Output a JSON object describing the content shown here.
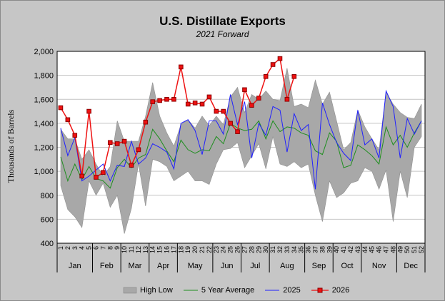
{
  "title": "U.S. Distillate Exports",
  "subtitle": "2021 Forward",
  "chart_data": {
    "type": "line",
    "ylabel": "Thousands of Barrels",
    "ylim": [
      400,
      2000
    ],
    "yticks": [
      400,
      600,
      800,
      1000,
      1200,
      1400,
      1600,
      1800,
      2000
    ],
    "ytick_labels": [
      "400",
      "600",
      "800",
      "1,000",
      "1,200",
      "1,400",
      "1,600",
      "1,800",
      "2,000"
    ],
    "x": [
      1,
      2,
      3,
      4,
      5,
      6,
      7,
      8,
      9,
      10,
      11,
      12,
      13,
      14,
      15,
      16,
      17,
      18,
      19,
      20,
      21,
      22,
      23,
      24,
      25,
      26,
      27,
      28,
      29,
      30,
      31,
      32,
      33,
      34,
      35,
      36,
      37,
      38,
      39,
      40,
      41,
      42,
      43,
      44,
      45,
      46,
      47,
      48,
      49,
      50,
      51,
      52
    ],
    "x_tick_labels": [
      "1",
      "2",
      "3",
      "4",
      "5",
      "6",
      "7",
      "8",
      "9",
      "10",
      "11",
      "12",
      "13",
      "14",
      "15",
      "16",
      "17",
      "18",
      "19",
      "20",
      "21",
      "22",
      "23",
      "24",
      "25",
      "26",
      "27",
      "28",
      "29",
      "30",
      "31",
      "32",
      "33",
      "34",
      "35",
      "36",
      "37",
      "38",
      "39",
      "40",
      "41",
      "42",
      "43",
      "44",
      "45",
      "46",
      "47",
      "48",
      "49",
      "50",
      "51",
      "52"
    ],
    "months": [
      {
        "label": "Jan",
        "start": 1,
        "end": 5
      },
      {
        "label": "Feb",
        "start": 6,
        "end": 9
      },
      {
        "label": "Mar",
        "start": 10,
        "end": 13
      },
      {
        "label": "Apr",
        "start": 14,
        "end": 17
      },
      {
        "label": "May",
        "start": 18,
        "end": 22
      },
      {
        "label": "Jun",
        "start": 23,
        "end": 26
      },
      {
        "label": "Jul",
        "start": 27,
        "end": 30
      },
      {
        "label": "Aug",
        "start": 31,
        "end": 35
      },
      {
        "label": "Sep",
        "start": 36,
        "end": 39
      },
      {
        "label": "Oct",
        "start": 40,
        "end": 43
      },
      {
        "label": "Nov",
        "start": 44,
        "end": 48
      },
      {
        "label": "Dec",
        "start": 49,
        "end": 52
      }
    ],
    "series": [
      {
        "name": "High Low",
        "kind": "band",
        "color": "#a8a8a8",
        "high": [
          1350,
          1270,
          1270,
          1100,
          1180,
          1060,
          960,
          1040,
          1420,
          1250,
          1250,
          1250,
          1460,
          1740,
          1460,
          1320,
          1210,
          1390,
          1430,
          1360,
          1460,
          1380,
          1460,
          1390,
          1620,
          1700,
          1490,
          1640,
          1600,
          1670,
          1600,
          1590,
          1860,
          1540,
          1560,
          1530,
          1760,
          1560,
          1660,
          1420,
          1180,
          1240,
          1510,
          1370,
          1270,
          1180,
          1660,
          1560,
          1490,
          1450,
          1440,
          1560
        ],
        "low": [
          880,
          680,
          620,
          530,
          920,
          800,
          900,
          700,
          800,
          480,
          690,
          1060,
          710,
          1100,
          1080,
          1040,
          920,
          960,
          1000,
          920,
          920,
          890,
          1060,
          1180,
          1190,
          1240,
          1030,
          1130,
          1230,
          1020,
          1290,
          1060,
          1040,
          1080,
          1030,
          1060,
          800,
          580,
          920,
          780,
          820,
          900,
          920,
          1030,
          1000,
          850,
          1010,
          580,
          1000,
          780,
          1200,
          1290
        ]
      },
      {
        "name": "5 Year Average",
        "kind": "line",
        "color": "#1e8e1e",
        "values": [
          1120,
          920,
          1060,
          930,
          1040,
          940,
          920,
          860,
          1030,
          1100,
          1030,
          1110,
          1140,
          1350,
          1270,
          1170,
          1080,
          1260,
          1180,
          1150,
          1180,
          1170,
          1290,
          1230,
          1400,
          1360,
          1340,
          1350,
          1420,
          1270,
          1420,
          1330,
          1370,
          1360,
          1320,
          1300,
          1170,
          1140,
          1320,
          1250,
          1030,
          1050,
          1220,
          1180,
          1130,
          1060,
          1370,
          1220,
          1300,
          1200,
          1320,
          1420
        ]
      },
      {
        "name": "2025",
        "kind": "line",
        "color": "#2020ff",
        "values": [
          1360,
          1130,
          1280,
          920,
          960,
          1010,
          1060,
          920,
          1050,
          1040,
          1250,
          1060,
          1110,
          1230,
          1200,
          1160,
          1020,
          1400,
          1430,
          1340,
          1140,
          1420,
          1420,
          1310,
          1640,
          1390,
          1580,
          1110,
          1400,
          1300,
          1540,
          1510,
          1160,
          1480,
          1340,
          1390,
          850,
          1570,
          1390,
          1240,
          1150,
          1090,
          1510,
          1220,
          1270,
          1110,
          1670,
          1540,
          1110,
          1440,
          1310,
          1420
        ]
      },
      {
        "name": "2026",
        "kind": "line-marker",
        "color": "#ee1111",
        "marker_color": "#8b0000",
        "values": [
          1530,
          1430,
          1300,
          960,
          1500,
          950,
          990,
          1240,
          1230,
          1250,
          1050,
          1180,
          1410,
          1580,
          1590,
          1600,
          1600,
          1870,
          1560,
          1570,
          1560,
          1620,
          1500,
          1500,
          1400,
          1330,
          1680,
          1550,
          1610,
          1790,
          1890,
          1940,
          1600,
          1790,
          null,
          null,
          null,
          null,
          null,
          null,
          null,
          null,
          null,
          null,
          null,
          null,
          null,
          null,
          null,
          null,
          null,
          null
        ]
      }
    ],
    "legend": {
      "placement": "bottom"
    },
    "grid": true
  }
}
